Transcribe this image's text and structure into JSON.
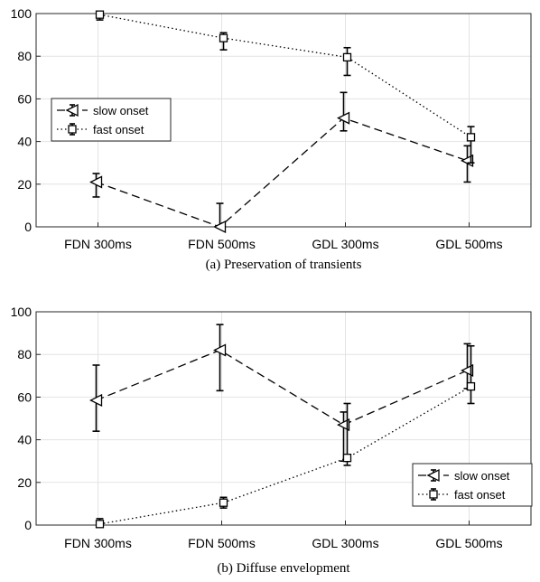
{
  "chart_data": [
    {
      "type": "line",
      "caption": "(a) Preservation of transients",
      "categories": [
        "FDN 300ms",
        "FDN 500ms",
        "GDL 300ms",
        "GDL 500ms"
      ],
      "ylim": [
        0,
        100
      ],
      "yticks": [
        0,
        20,
        40,
        60,
        80,
        100
      ],
      "grid": true,
      "legend_position": "middle-left",
      "series": [
        {
          "name": "slow onset",
          "marker": "triangle-left",
          "line_style": "dashed",
          "values": [
            21,
            0,
            51,
            31
          ],
          "err_low": [
            14,
            0,
            45,
            21
          ],
          "err_high": [
            25,
            11,
            63,
            38
          ]
        },
        {
          "name": "fast onset",
          "marker": "square",
          "line_style": "dotted",
          "values": [
            99.5,
            88.5,
            79.5,
            42
          ],
          "err_low": [
            97,
            83,
            71,
            30
          ],
          "err_high": [
            100,
            91,
            84,
            47
          ]
        }
      ]
    },
    {
      "type": "line",
      "caption": "(b) Diffuse envelopment",
      "categories": [
        "FDN 300ms",
        "FDN 500ms",
        "GDL 300ms",
        "GDL 500ms"
      ],
      "ylim": [
        0,
        100
      ],
      "yticks": [
        0,
        20,
        40,
        60,
        80,
        100
      ],
      "grid": true,
      "legend_position": "bottom-right",
      "series": [
        {
          "name": "slow onset",
          "marker": "triangle-left",
          "line_style": "dashed",
          "values": [
            58.5,
            82,
            47,
            72.5
          ],
          "err_low": [
            44,
            63,
            30,
            64
          ],
          "err_high": [
            75,
            94,
            53,
            85
          ]
        },
        {
          "name": "fast onset",
          "marker": "square",
          "line_style": "dotted",
          "values": [
            0.5,
            10.5,
            31.5,
            65
          ],
          "err_low": [
            0,
            8,
            28,
            57
          ],
          "err_high": [
            3,
            13,
            57,
            84
          ]
        }
      ]
    }
  ]
}
